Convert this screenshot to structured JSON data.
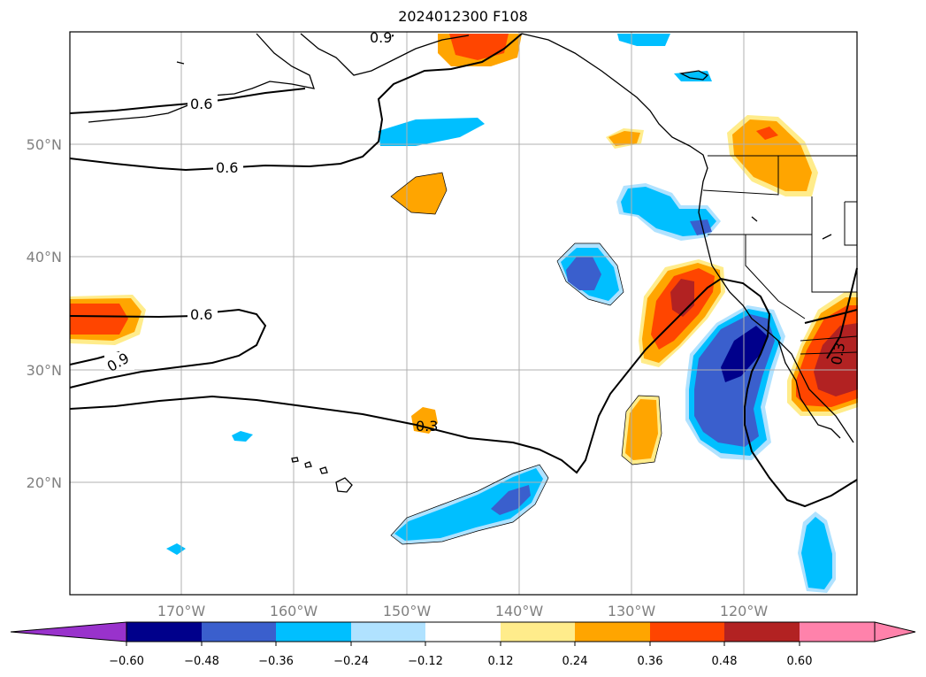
{
  "title": "2024012300 F108",
  "lat_labels": [
    "50°N",
    "40°N",
    "30°N",
    "20°N"
  ],
  "lon_labels": [
    "170°W",
    "160°W",
    "150°W",
    "140°W",
    "130°W",
    "120°W"
  ],
  "contour_labels": [
    "0.6",
    "0.6",
    "0.6",
    "0.9",
    "0.9",
    "0.3",
    "0.3"
  ],
  "colorbar": {
    "ticks": [
      "−0.60",
      "−0.48",
      "−0.36",
      "−0.24",
      "−0.12",
      "0.12",
      "0.24",
      "0.36",
      "0.48",
      "0.60"
    ],
    "colors": [
      "#9932cc",
      "#00008b",
      "#3a5fcd",
      "#00bfff",
      "#b0e2ff",
      "#ffffff",
      "#ffec8b",
      "#ffa500",
      "#ff4500",
      "#b22222",
      "#ff82ab"
    ]
  }
}
